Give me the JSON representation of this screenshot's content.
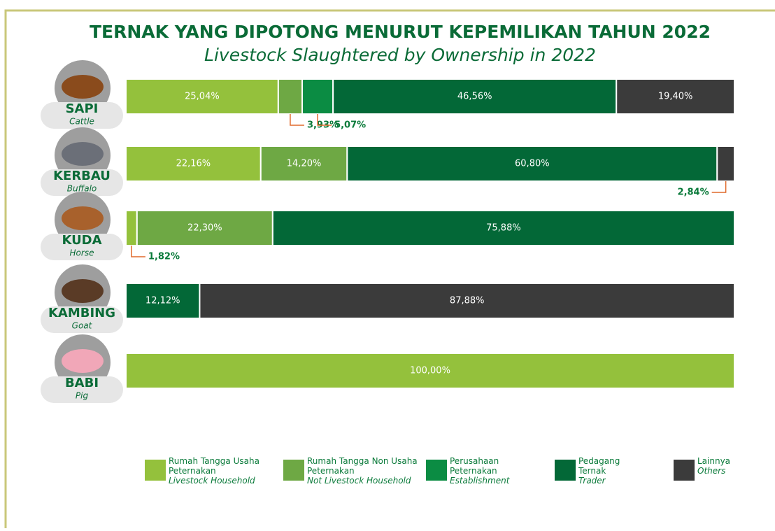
{
  "chart_data": {
    "type": "stacked_bar_horizontal",
    "title": "TERNAK YANG DIPOTONG MENURUT KEPEMILIKAN TAHUN 2022",
    "subtitle": "Livestock Slaughtered by Ownership in 2022",
    "categories": [
      "SAPI",
      "KERBAU",
      "KUDA",
      "KAMBING",
      "BABI"
    ],
    "categories_en": [
      "Cattle",
      "Buffalo",
      "Horse",
      "Goat",
      "Pig"
    ],
    "xlim": [
      0,
      100
    ],
    "series": [
      {
        "name": "Rumah Tangga Usaha Peternakan",
        "name_en": "Livestock Household",
        "color": "#94c13c",
        "values": [
          25.04,
          22.16,
          1.82,
          null,
          100.0
        ],
        "value_labels": [
          "25,04%",
          "22,16%",
          "1,82%",
          null,
          "100,00%"
        ]
      },
      {
        "name": "Rumah Tangga Non Usaha Peternakan",
        "name_en": "Not Livestock Household",
        "color": "#6ea844",
        "values": [
          3.93,
          14.2,
          22.3,
          null,
          null
        ],
        "value_labels": [
          "3,93%",
          "14,20%",
          "22,30%",
          null,
          null
        ]
      },
      {
        "name": "Perusahaan Peternakan",
        "name_en": "Establishment",
        "color": "#0b8c43",
        "values": [
          5.07,
          null,
          null,
          null,
          null
        ],
        "value_labels": [
          "5,07%",
          null,
          null,
          null,
          null
        ]
      },
      {
        "name": "Pedagang Ternak",
        "name_en": "Trader",
        "color": "#036837",
        "values": [
          46.56,
          60.8,
          75.88,
          12.12,
          null
        ],
        "value_labels": [
          "46,56%",
          "60,80%",
          "75,88%",
          "12,12%",
          null
        ]
      },
      {
        "name": "Lainnya",
        "name_en": "Others",
        "color": "#3b3b3b",
        "values": [
          19.4,
          2.84,
          null,
          87.88,
          null
        ],
        "value_labels": [
          "19,40%",
          "2,84%",
          null,
          "87,88%",
          null
        ]
      }
    ]
  }
}
